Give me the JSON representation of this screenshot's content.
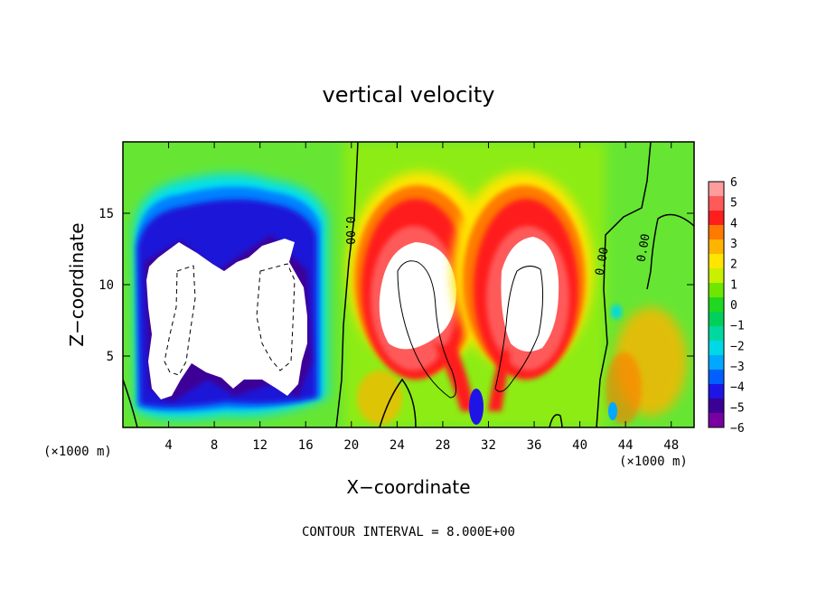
{
  "chart_data": {
    "type": "heatmap",
    "title": "vertical velocity",
    "xlabel": "X−coordinate",
    "ylabel": "Z−coordinate",
    "x_unit_left": "(×1000 m)",
    "x_unit_right": "(×1000 m)",
    "xlim": [
      0,
      50
    ],
    "ylim": [
      0,
      20
    ],
    "xticks": [
      "4",
      "8",
      "12",
      "16",
      "20",
      "24",
      "28",
      "32",
      "36",
      "40",
      "44",
      "48"
    ],
    "yticks": [
      "5",
      "10",
      "15"
    ],
    "xtick_values": [
      4,
      8,
      12,
      16,
      20,
      24,
      28,
      32,
      36,
      40,
      44,
      48
    ],
    "ytick_values": [
      5,
      10,
      15
    ],
    "note": "CONTOUR INTERVAL = 8.000E+00",
    "contour_labels": [
      "0.00",
      "0.00",
      "0.00"
    ],
    "colorbar": {
      "labels": [
        "6",
        "5",
        "4",
        "3",
        "2",
        "1",
        "0",
        "−1",
        "−2",
        "−3",
        "−4",
        "−5",
        "−6"
      ],
      "range": [
        -6,
        6
      ],
      "colors": [
        "#ff9c9c",
        "#ff5a5a",
        "#ff1e1e",
        "#ff7a00",
        "#ffb400",
        "#ffe600",
        "#c8f000",
        "#6ee600",
        "#20d820",
        "#00d05a",
        "#00d8a0",
        "#00d8e6",
        "#00a8ff",
        "#0060ff",
        "#1e14e6",
        "#3c0096",
        "#7800a0"
      ]
    },
    "features": [
      {
        "kind": "downdraft",
        "x_range": [
          1.5,
          17
        ],
        "z_range": [
          1,
          17
        ],
        "min_value": -6
      },
      {
        "kind": "updraft",
        "center_x": 26,
        "center_z": 9,
        "max_value": 6
      },
      {
        "kind": "updraft",
        "center_x": 34.5,
        "center_z": 9,
        "max_value": 6
      }
    ]
  }
}
